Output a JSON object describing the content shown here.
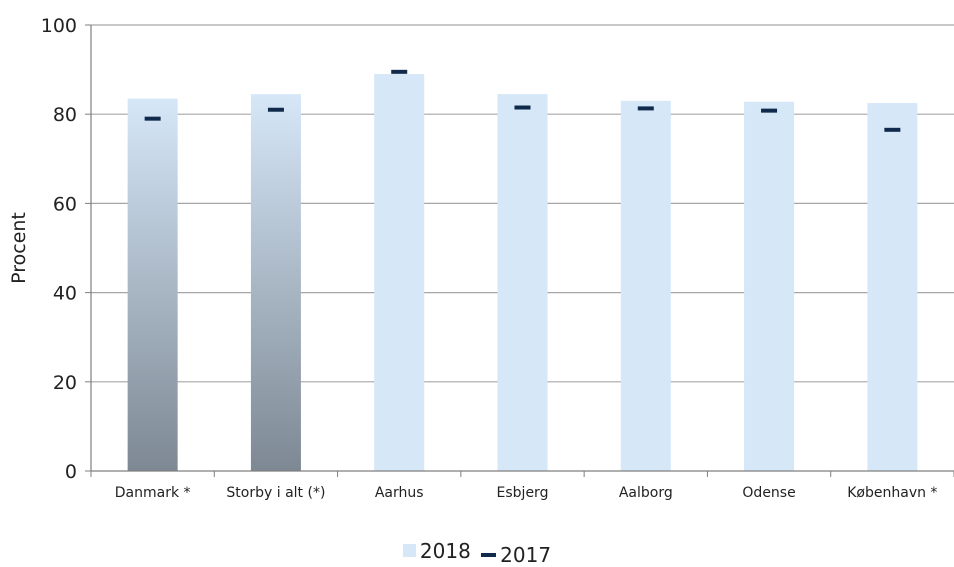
{
  "chart_data": {
    "type": "bar",
    "title": "",
    "xlabel": "",
    "ylabel": "Procent",
    "ylim": [
      0,
      100
    ],
    "yticks": [
      0,
      20,
      40,
      60,
      80,
      100
    ],
    "grid": true,
    "legend_position": "bottom",
    "categories": [
      "Danmark *",
      "Storby i alt (*)",
      "Aarhus",
      "Esbjerg",
      "Aalborg",
      "Odense",
      "København *"
    ],
    "highlighted_categories": [
      "Danmark *",
      "Storby i alt (*)"
    ],
    "series": [
      {
        "name": "2018",
        "kind": "bar",
        "color": "#d6e7f8",
        "values": [
          83.5,
          84.5,
          89.0,
          84.5,
          83.0,
          82.8,
          82.5
        ]
      },
      {
        "name": "2017",
        "kind": "marker",
        "color": "#0f2a4a",
        "values": [
          79.0,
          81.0,
          89.5,
          81.5,
          81.3,
          80.8,
          76.5
        ]
      }
    ],
    "colors": {
      "highlight_top": "#d6e7f8",
      "highlight_bottom": "#7d8893",
      "grid": "#a6a6a6",
      "axis": "#7f7f7f"
    }
  }
}
